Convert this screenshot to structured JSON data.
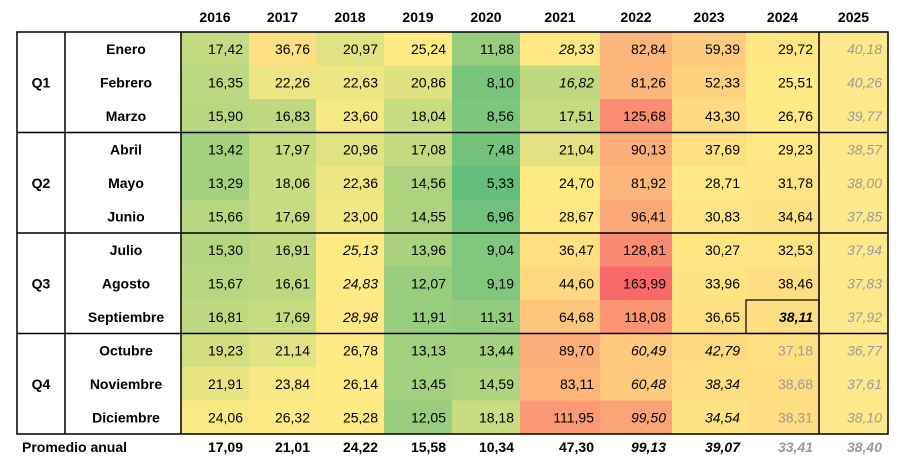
{
  "chart_data": {
    "type": "heatmap",
    "columns": [
      "2016",
      "2017",
      "2018",
      "2019",
      "2020",
      "2021",
      "2022",
      "2023",
      "2024",
      "2025"
    ],
    "groups": [
      {
        "label": "Q1",
        "months": [
          "Enero",
          "Febrero",
          "Marzo"
        ]
      },
      {
        "label": "Q2",
        "months": [
          "Abril",
          "Mayo",
          "Junio"
        ]
      },
      {
        "label": "Q3",
        "months": [
          "Julio",
          "Agosto",
          "Septiembre"
        ]
      },
      {
        "label": "Q4",
        "months": [
          "Octubre",
          "Noviembre",
          "Diciembre"
        ]
      }
    ],
    "rows": [
      {
        "label": "Enero",
        "cells": [
          "17,42",
          "36,76",
          "20,97",
          "25,24",
          "11,88",
          "28,33",
          "82,84",
          "59,39",
          "29,72",
          "40,18"
        ],
        "values": [
          17.42,
          36.76,
          20.97,
          25.24,
          11.88,
          28.33,
          82.84,
          59.39,
          29.72,
          40.18
        ]
      },
      {
        "label": "Febrero",
        "cells": [
          "16,35",
          "22,26",
          "22,63",
          "20,86",
          "8,10",
          "16,82",
          "81,26",
          "52,33",
          "25,51",
          "40,26"
        ],
        "values": [
          16.35,
          22.26,
          22.63,
          20.86,
          8.1,
          16.82,
          81.26,
          52.33,
          25.51,
          40.26
        ]
      },
      {
        "label": "Marzo",
        "cells": [
          "15,90",
          "16,83",
          "23,60",
          "18,04",
          "8,56",
          "17,51",
          "125,68",
          "43,30",
          "26,76",
          "39,77"
        ],
        "values": [
          15.9,
          16.83,
          23.6,
          18.04,
          8.56,
          17.51,
          125.68,
          43.3,
          26.76,
          39.77
        ]
      },
      {
        "label": "Abril",
        "cells": [
          "13,42",
          "17,97",
          "20,96",
          "17,08",
          "7,48",
          "21,04",
          "90,13",
          "37,69",
          "29,23",
          "38,57"
        ],
        "values": [
          13.42,
          17.97,
          20.96,
          17.08,
          7.48,
          21.04,
          90.13,
          37.69,
          29.23,
          38.57
        ]
      },
      {
        "label": "Mayo",
        "cells": [
          "13,29",
          "18,06",
          "22,36",
          "14,56",
          "5,33",
          "24,70",
          "81,92",
          "28,71",
          "31,78",
          "38,00"
        ],
        "values": [
          13.29,
          18.06,
          22.36,
          14.56,
          5.33,
          24.7,
          81.92,
          28.71,
          31.78,
          38.0
        ]
      },
      {
        "label": "Junio",
        "cells": [
          "15,66",
          "17,69",
          "23,00",
          "14,55",
          "6,96",
          "28,67",
          "96,41",
          "30,83",
          "34,64",
          "37,85"
        ],
        "values": [
          15.66,
          17.69,
          23.0,
          14.55,
          6.96,
          28.67,
          96.41,
          30.83,
          34.64,
          37.85
        ]
      },
      {
        "label": "Julio",
        "cells": [
          "15,30",
          "16,91",
          "25,13",
          "13,96",
          "9,04",
          "36,47",
          "128,81",
          "30,27",
          "32,53",
          "37,94"
        ],
        "values": [
          15.3,
          16.91,
          25.13,
          13.96,
          9.04,
          36.47,
          128.81,
          30.27,
          32.53,
          37.94
        ]
      },
      {
        "label": "Agosto",
        "cells": [
          "15,67",
          "16,61",
          "24,83",
          "12,07",
          "9,19",
          "44,60",
          "163,99",
          "33,96",
          "38,46",
          "37,83"
        ],
        "values": [
          15.67,
          16.61,
          24.83,
          12.07,
          9.19,
          44.6,
          163.99,
          33.96,
          38.46,
          37.83
        ]
      },
      {
        "label": "Septiembre",
        "cells": [
          "16,81",
          "17,69",
          "28,98",
          "11,91",
          "11,31",
          "64,68",
          "118,08",
          "36,65",
          "38,11",
          "37,92"
        ],
        "values": [
          16.81,
          17.69,
          28.98,
          11.91,
          11.31,
          64.68,
          118.08,
          36.65,
          38.11,
          37.92
        ]
      },
      {
        "label": "Octubre",
        "cells": [
          "19,23",
          "21,14",
          "26,78",
          "13,13",
          "13,44",
          "89,70",
          "60,49",
          "42,79",
          "37,18",
          "36,77"
        ],
        "values": [
          19.23,
          21.14,
          26.78,
          13.13,
          13.44,
          89.7,
          60.49,
          42.79,
          37.18,
          36.77
        ]
      },
      {
        "label": "Noviembre",
        "cells": [
          "21,91",
          "23,84",
          "26,14",
          "13,45",
          "14,59",
          "83,11",
          "60,48",
          "38,34",
          "38,68",
          "37,61"
        ],
        "values": [
          21.91,
          23.84,
          26.14,
          13.45,
          14.59,
          83.11,
          60.48,
          38.34,
          38.68,
          37.61
        ]
      },
      {
        "label": "Diciembre",
        "cells": [
          "24,06",
          "26,32",
          "25,28",
          "12,05",
          "18,18",
          "111,95",
          "99,50",
          "34,54",
          "38,31",
          "38,10"
        ],
        "values": [
          24.06,
          26.32,
          25.28,
          12.05,
          18.18,
          111.95,
          99.5,
          34.54,
          38.31,
          38.1
        ]
      }
    ],
    "italic_cells": [
      [
        0,
        5
      ],
      [
        1,
        5
      ],
      [
        6,
        2
      ],
      [
        7,
        2
      ],
      [
        8,
        2
      ],
      [
        9,
        6
      ],
      [
        9,
        7
      ],
      [
        10,
        6
      ],
      [
        10,
        7
      ],
      [
        11,
        6
      ],
      [
        11,
        7
      ],
      [
        8,
        8
      ]
    ],
    "highlighted_cell": [
      8,
      8
    ],
    "estimated_column": "2025",
    "faded_cells": [
      [
        9,
        8
      ],
      [
        10,
        8
      ],
      [
        11,
        8
      ]
    ],
    "summary": {
      "label": "Promedio anual",
      "cells": [
        "17,09",
        "21,01",
        "24,22",
        "15,58",
        "10,34",
        "47,30",
        "99,13",
        "39,07",
        "33,41",
        "38,40"
      ],
      "values": [
        17.09,
        21.01,
        24.22,
        15.58,
        10.34,
        47.3,
        99.13,
        39.07,
        33.41,
        38.4
      ],
      "italic_columns": [
        6,
        7,
        8,
        9
      ],
      "faded_columns": [
        8,
        9
      ]
    },
    "color_scale": {
      "low": "#63be7b",
      "mid": "#ffeb84",
      "high": "#f8696b",
      "estimated_fill": "#fde98b"
    }
  }
}
